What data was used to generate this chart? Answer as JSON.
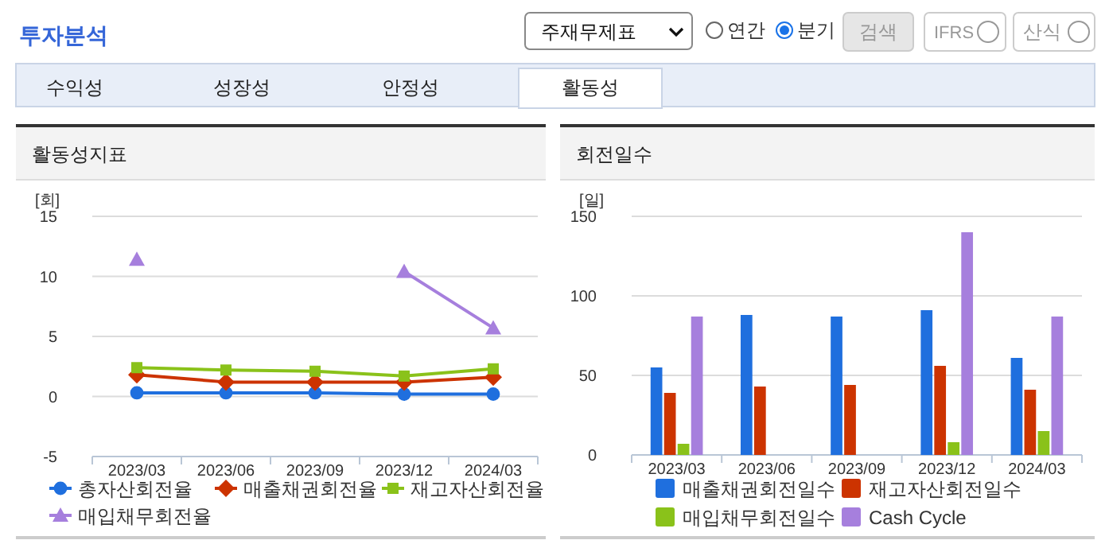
{
  "chart_data": [
    {
      "type": "other",
      "title": "투자분석",
      "annotations": [
        "주재무제표",
        "연간",
        "분기",
        "검색",
        "IFRS",
        "산식",
        "수익성",
        "성장성",
        "안정성",
        "활동성"
      ]
    },
    {
      "type": "line",
      "title": "활동성지표",
      "ylabel": "[회]",
      "categories": [
        "2023/03",
        "2023/06",
        "2023/09",
        "2023/12",
        "2024/03"
      ],
      "ylim": [
        -5,
        15
      ],
      "yticks": [
        -5,
        0,
        5,
        10,
        15
      ],
      "grid": "y",
      "legend": "bottom",
      "line_style": "solid",
      "series": [
        {
          "name": "총자산회전율",
          "color": "#1f6fde",
          "marker": "circle",
          "values": [
            0.3,
            0.3,
            0.3,
            0.2,
            0.2
          ]
        },
        {
          "name": "매출채권회전율",
          "color": "#cc3300",
          "marker": "diamond",
          "values": [
            1.8,
            1.2,
            1.2,
            1.2,
            1.6
          ]
        },
        {
          "name": "재고자산회전율",
          "color": "#8ac21a",
          "marker": "square",
          "values": [
            2.4,
            2.2,
            2.1,
            1.7,
            2.3
          ]
        },
        {
          "name": "매입채무회전율",
          "color": "#a67fdd",
          "marker": "triangle",
          "values": [
            11.4,
            null,
            null,
            10.4,
            5.7
          ]
        }
      ]
    },
    {
      "type": "bar",
      "title": "회전일수",
      "ylabel": "[일]",
      "categories": [
        "2023/03",
        "2023/06",
        "2023/09",
        "2023/12",
        "2024/03"
      ],
      "ylim": [
        0,
        150
      ],
      "yticks": [
        0,
        50,
        100,
        150
      ],
      "grid": "y",
      "legend": "bottom",
      "series": [
        {
          "name": "매출채권회전일수",
          "color": "#1f6fde",
          "values": [
            55,
            88,
            87,
            91,
            61
          ]
        },
        {
          "name": "재고자산회전일수",
          "color": "#cc3300",
          "values": [
            39,
            43,
            44,
            56,
            41
          ]
        },
        {
          "name": "매입채무회전일수",
          "color": "#8ac21a",
          "values": [
            7,
            null,
            null,
            8,
            15
          ]
        },
        {
          "name": "Cash Cycle",
          "color": "#a67fdd",
          "values": [
            87,
            null,
            null,
            140,
            87
          ]
        }
      ]
    }
  ]
}
